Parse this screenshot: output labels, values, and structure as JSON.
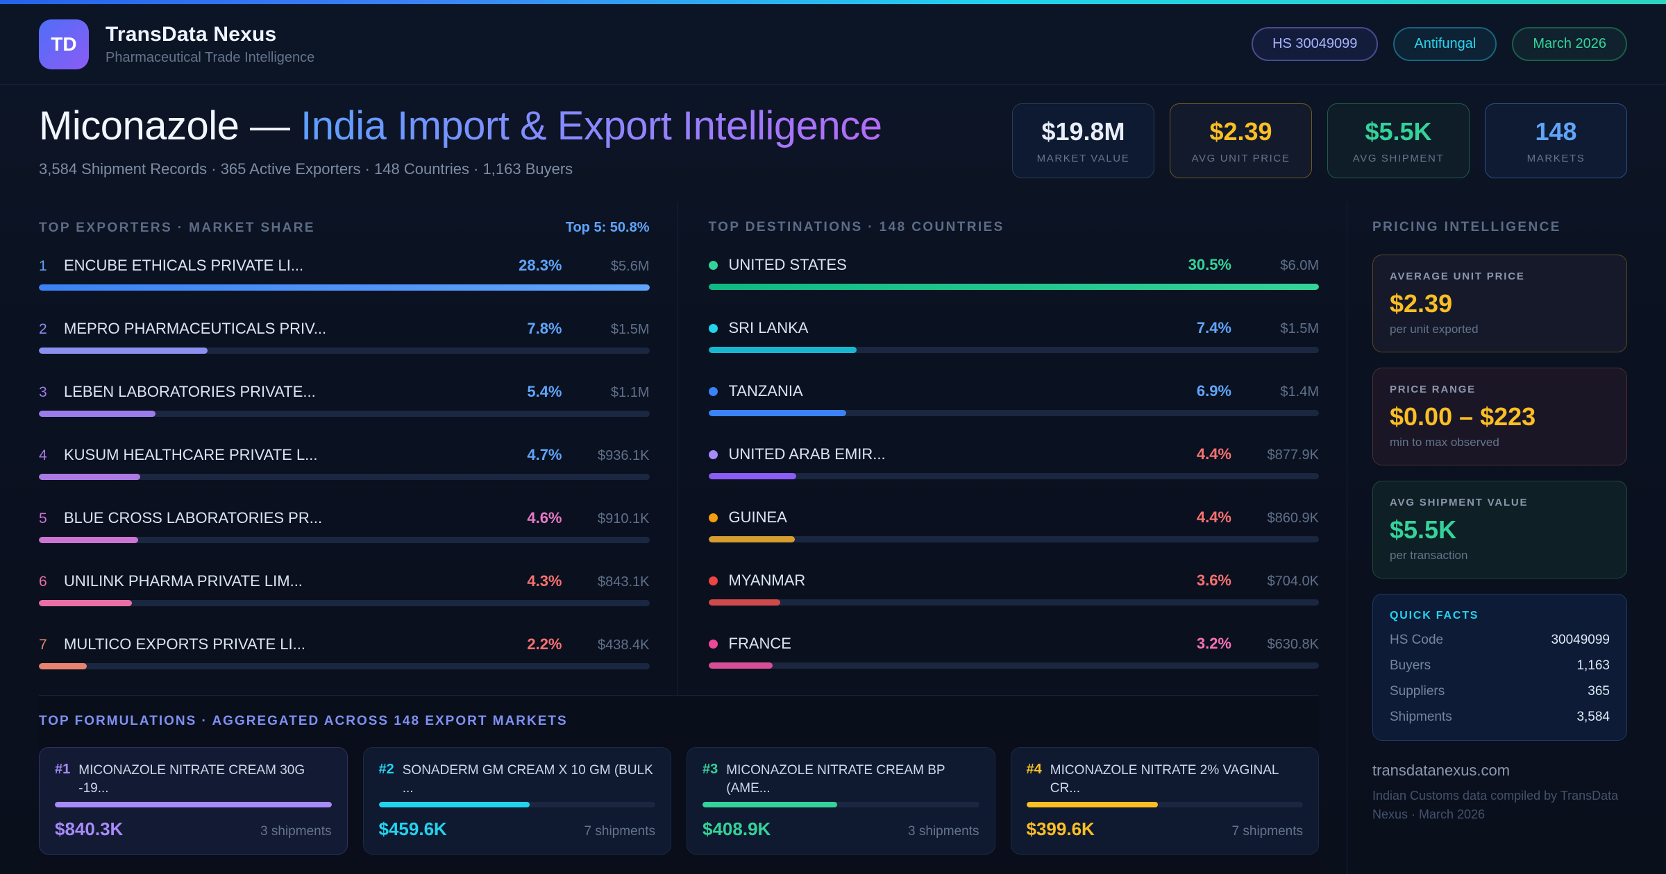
{
  "header": {
    "logo": "TD",
    "app_name": "TransData Nexus",
    "tagline": "Pharmaceutical Trade Intelligence",
    "pills": [
      {
        "label": "HS 30049099",
        "color": "#a5b4fc",
        "border": "#494b8f",
        "bg": "rgba(99,102,241,0.10)"
      },
      {
        "label": "Antifungal",
        "color": "#2dd4ee",
        "border": "#17657e",
        "bg": "rgba(34,211,238,0.07)"
      },
      {
        "label": "March 2026",
        "color": "#34d399",
        "border": "#1a5e48",
        "bg": "rgba(52,211,153,0.07)"
      }
    ]
  },
  "hero": {
    "title_main": "Miconazole — ",
    "title_accent": "India Import & Export Intelligence",
    "subtitle": "3,584 Shipment Records · 365 Active Exporters · 148 Countries · 1,163 Buyers",
    "stats": [
      {
        "value": "$19.8M",
        "label": "MARKET VALUE",
        "color": "#e9eef8",
        "border": "#2b3a57",
        "bg": "#0e1a31"
      },
      {
        "value": "$2.39",
        "label": "AVG UNIT PRICE",
        "color": "#fbbf24",
        "border": "#6b5a21",
        "bg": "#131a2b"
      },
      {
        "value": "$5.5K",
        "label": "AVG SHIPMENT",
        "color": "#34d399",
        "border": "#1f5c46",
        "bg": "#0f1d29"
      },
      {
        "value": "148",
        "label": "MARKETS",
        "color": "#60a5fa",
        "border": "#2b4f86",
        "bg": "#0e1b33"
      }
    ]
  },
  "exporters": {
    "heading": "TOP EXPORTERS · MARKET SHARE",
    "top5": "Top 5: 50.8%",
    "items": [
      {
        "rank": "1",
        "name": "ENCUBE ETHICALS PRIVATE LI...",
        "pct": "28.3%",
        "pct_color": "#60a5fa",
        "value": "$5.6M",
        "bar_pct": 100,
        "rank_color": "#60a5fa",
        "bar_color": "linear-gradient(90deg,#3b82f6,#60a5fa)"
      },
      {
        "rank": "2",
        "name": "MEPRO PHARMACEUTICALS PRIV...",
        "pct": "7.8%",
        "pct_color": "#60a5fa",
        "value": "$1.5M",
        "bar_pct": 27.6,
        "rank_color": "#8b90f0",
        "bar_color": "#8b90f0"
      },
      {
        "rank": "3",
        "name": "LEBEN LABORATORIES PRIVATE...",
        "pct": "5.4%",
        "pct_color": "#60a5fa",
        "value": "$1.1M",
        "bar_pct": 19.1,
        "rank_color": "#9c7cec",
        "bar_color": "#9c7cec"
      },
      {
        "rank": "4",
        "name": "KUSUM HEALTHCARE PRIVATE L...",
        "pct": "4.7%",
        "pct_color": "#60a5fa",
        "value": "$936.1K",
        "bar_pct": 16.6,
        "rank_color": "#ab79e2",
        "bar_color": "#ab79e2"
      },
      {
        "rank": "5",
        "name": "BLUE CROSS LABORATORIES PR...",
        "pct": "4.6%",
        "pct_color": "#e879c9",
        "value": "$910.1K",
        "bar_pct": 16.3,
        "rank_color": "#cc74d4",
        "bar_color": "#cc74d4"
      },
      {
        "rank": "6",
        "name": "UNILINK PHARMA PRIVATE LIM...",
        "pct": "4.3%",
        "pct_color": "#f87171",
        "value": "$843.1K",
        "bar_pct": 15.2,
        "rank_color": "#ea6fa4",
        "bar_color": "#ea6fa4"
      },
      {
        "rank": "7",
        "name": "MULTICO EXPORTS PRIVATE LI...",
        "pct": "2.2%",
        "pct_color": "#f87171",
        "value": "$438.4K",
        "bar_pct": 7.8,
        "rank_color": "#e8836f",
        "bar_color": "#e8836f"
      }
    ]
  },
  "destinations": {
    "heading": "TOP DESTINATIONS · 148 COUNTRIES",
    "items": [
      {
        "name": "UNITED STATES",
        "pct": "30.5%",
        "pct_color": "#34d399",
        "value": "$6.0M",
        "bar_pct": 100,
        "dot": "#34d399",
        "bar_color": "linear-gradient(90deg,#10b981,#34d399)"
      },
      {
        "name": "SRI LANKA",
        "pct": "7.4%",
        "pct_color": "#60a5fa",
        "value": "$1.5M",
        "bar_pct": 24.3,
        "dot": "#22d3ee",
        "bar_color": "#17b8cf"
      },
      {
        "name": "TANZANIA",
        "pct": "6.9%",
        "pct_color": "#60a5fa",
        "value": "$1.4M",
        "bar_pct": 22.6,
        "dot": "#3b82f6",
        "bar_color": "#3b82f6"
      },
      {
        "name": "UNITED ARAB EMIR...",
        "pct": "4.4%",
        "pct_color": "#f87171",
        "value": "$877.9K",
        "bar_pct": 14.4,
        "dot": "#a78bfa",
        "bar_color": "#8b5cf6"
      },
      {
        "name": "GUINEA",
        "pct": "4.4%",
        "pct_color": "#f87171",
        "value": "$860.9K",
        "bar_pct": 14.1,
        "dot": "#f59e0b",
        "bar_color": "#d69e2e"
      },
      {
        "name": "MYANMAR",
        "pct": "3.6%",
        "pct_color": "#f87171",
        "value": "$704.0K",
        "bar_pct": 11.8,
        "dot": "#ef4444",
        "bar_color": "#cf4a4a"
      },
      {
        "name": "FRANCE",
        "pct": "3.2%",
        "pct_color": "#f472b6",
        "value": "$630.8K",
        "bar_pct": 10.5,
        "dot": "#ec4899",
        "bar_color": "#d64f96"
      }
    ]
  },
  "pricing": {
    "heading": "PRICING INTELLIGENCE",
    "cards": [
      {
        "label": "AVERAGE UNIT PRICE",
        "value": "$2.39",
        "sub": "per unit exported",
        "value_color": "#fbbf24",
        "border": "#57481f",
        "bg": "#15192a"
      },
      {
        "label": "PRICE RANGE",
        "value": "$0.00 – $223",
        "sub": "min to max observed",
        "value_color": "#fbbf24",
        "border": "#4a3030",
        "bg": "#1a1626"
      },
      {
        "label": "AVG SHIPMENT VALUE",
        "value": "$5.5K",
        "sub": "per transaction",
        "value_color": "#34d399",
        "border": "#1d4a3c",
        "bg": "#0f1f26"
      }
    ],
    "quick_facts": {
      "label": "QUICK FACTS",
      "label_color": "#22d3ee",
      "rows": [
        [
          "HS Code",
          "30049099"
        ],
        [
          "Buyers",
          "1,163"
        ],
        [
          "Suppliers",
          "365"
        ],
        [
          "Shipments",
          "3,584"
        ]
      ]
    },
    "footer_domain": "transdatanexus.com",
    "footer_note": "Indian Customs data compiled by TransData Nexus · March 2026"
  },
  "formulations": {
    "heading": "TOP FORMULATIONS · AGGREGATED ACROSS 148 EXPORT MARKETS",
    "cards": [
      {
        "rank": "#1",
        "name": "MICONAZOLE NITRATE CREAM 30G -19...",
        "value": "$840.3K",
        "shipments": "3 shipments",
        "bar_pct": 100,
        "accent": "#a78bfa",
        "border": "#343060",
        "bg": "#131a33"
      },
      {
        "rank": "#2",
        "name": "SONADERM GM CREAM X 10 GM (BULK ...",
        "value": "$459.6K",
        "shipments": "7 shipments",
        "bar_pct": 54.7,
        "accent": "#22d3ee",
        "border": "#1c2a45",
        "bg": "#0f1930"
      },
      {
        "rank": "#3",
        "name": "MICONAZOLE NITRATE CREAM BP (AME...",
        "value": "$408.9K",
        "shipments": "3 shipments",
        "bar_pct": 48.7,
        "accent": "#34d399",
        "border": "#1c2a45",
        "bg": "#0f1930"
      },
      {
        "rank": "#4",
        "name": "MICONAZOLE NITRATE 2% VAGINAL CR...",
        "value": "$399.6K",
        "shipments": "7 shipments",
        "bar_pct": 47.6,
        "accent": "#fbbf24",
        "border": "#1c2a45",
        "bg": "#0f1930"
      }
    ]
  }
}
